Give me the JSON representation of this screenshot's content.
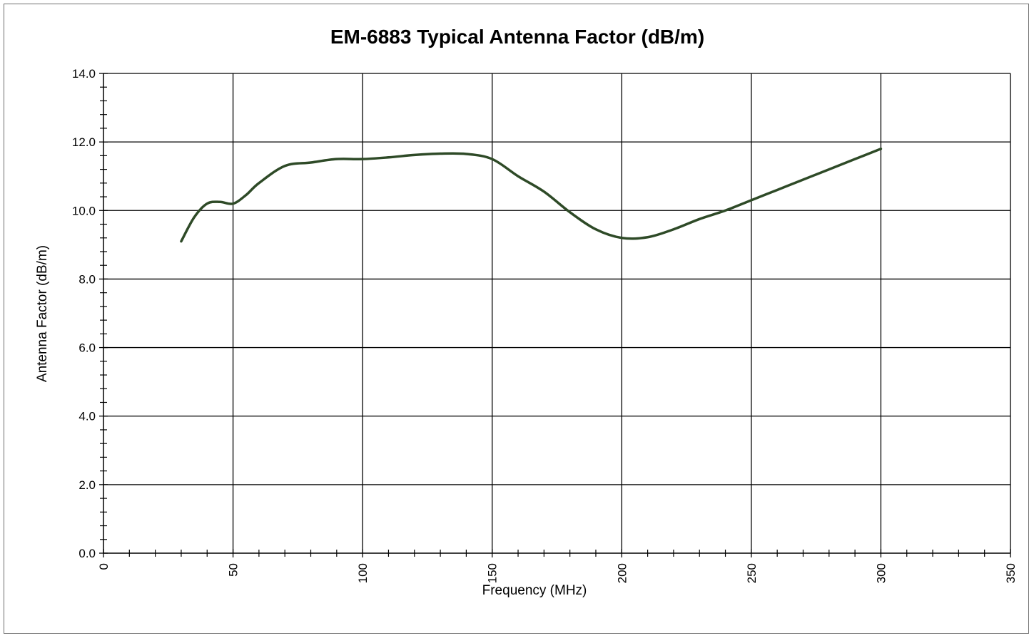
{
  "chart_data": {
    "type": "line",
    "title": "EM-6883 Typical Antenna Factor (dB/m)",
    "xlabel": "Frequency (MHz)",
    "ylabel": "Antenna Factor (dB/m)",
    "xlim": [
      0,
      350
    ],
    "ylim": [
      0,
      14
    ],
    "x_major_ticks": [
      0,
      50,
      100,
      150,
      200,
      250,
      300,
      350
    ],
    "x_tick_labels": [
      "0",
      "50",
      "100",
      "150",
      "200",
      "250",
      "300",
      "350"
    ],
    "y_major_ticks": [
      0,
      2,
      4,
      6,
      8,
      10,
      12,
      14
    ],
    "y_tick_labels": [
      "0.0",
      "2.0",
      "4.0",
      "6.0",
      "8.0",
      "10.0",
      "12.0",
      "14.0"
    ],
    "x_minor_step": 10,
    "y_minor_step": 0.4,
    "grid": true,
    "line_color": "#2e4a27",
    "series": [
      {
        "x": [
          30,
          35,
          40,
          45,
          50,
          55,
          60,
          70,
          80,
          90,
          100,
          110,
          120,
          130,
          140,
          150,
          160,
          170,
          180,
          190,
          200,
          210,
          220,
          230,
          240,
          250,
          260,
          270,
          280,
          290,
          300
        ],
        "values": [
          9.1,
          9.8,
          10.2,
          10.25,
          10.2,
          10.45,
          10.8,
          11.3,
          11.4,
          11.5,
          11.5,
          11.55,
          11.62,
          11.66,
          11.65,
          11.5,
          11.0,
          10.55,
          9.95,
          9.45,
          9.2,
          9.22,
          9.45,
          9.75,
          10.0,
          10.3,
          10.6,
          10.9,
          11.2,
          11.5,
          11.8
        ]
      }
    ]
  }
}
